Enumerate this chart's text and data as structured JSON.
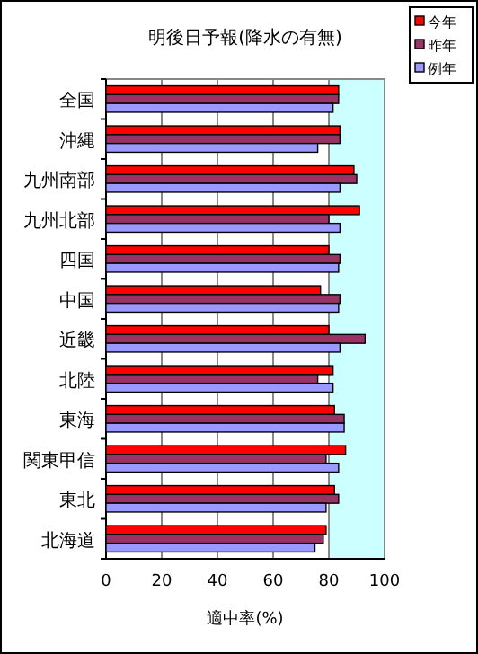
{
  "chart_data": {
    "type": "bar",
    "orientation": "horizontal",
    "title": "明後日予報(降水の有無)",
    "xlabel": "適中率(%)",
    "categories": [
      "全国",
      "沖縄",
      "九州南部",
      "九州北部",
      "四国",
      "中国",
      "近畿",
      "北陸",
      "東海",
      "関東甲信",
      "東北",
      "北海道"
    ],
    "series": [
      {
        "name": "今年",
        "color": "#ff0000",
        "values": [
          83.5,
          84,
          89,
          91,
          80,
          77,
          80,
          81.5,
          82,
          86,
          82,
          79
        ]
      },
      {
        "name": "昨年",
        "color": "#993366",
        "values": [
          83.5,
          84,
          90,
          80,
          84,
          84,
          93,
          76,
          85.5,
          79,
          83.5,
          78
        ]
      },
      {
        "name": "例年",
        "color": "#9999ff",
        "values": [
          81.5,
          76,
          84,
          84,
          83.5,
          83.5,
          84,
          81.5,
          85.5,
          83.5,
          79,
          75
        ]
      }
    ],
    "xlim": [
      0,
      100
    ],
    "xticks": [
      0,
      20,
      40,
      60,
      80,
      100
    ],
    "grid": "x",
    "legend": "top right",
    "bands": [
      {
        "axis": "x",
        "from": 80,
        "to": 100,
        "color": "#ccffff"
      }
    ]
  }
}
